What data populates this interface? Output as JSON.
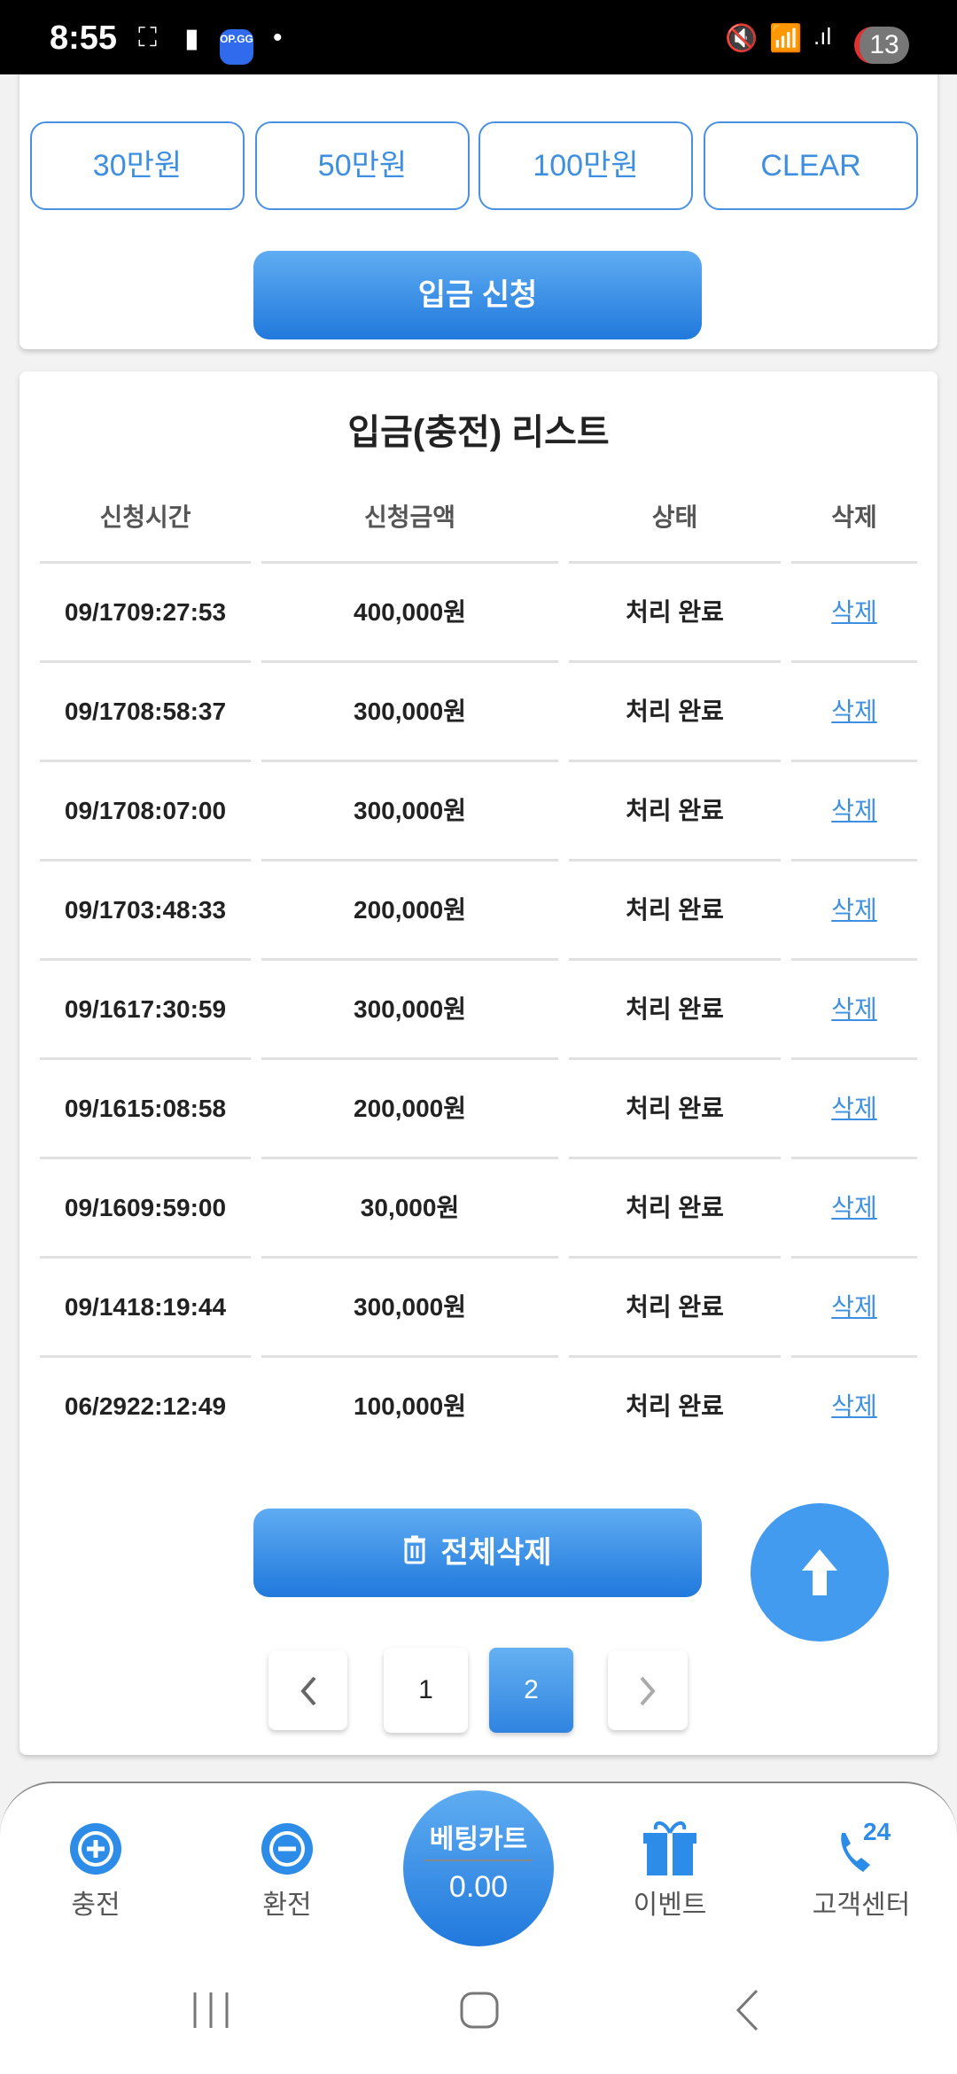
{
  "status_bar": {
    "time": "8:55",
    "notification_count": "13",
    "app_badge": "OP.GG"
  },
  "amount_buttons": [
    "30만원",
    "50만원",
    "100만원",
    "CLEAR"
  ],
  "deposit_request_label": "입금 신청",
  "list": {
    "title": "입금(충전) 리스트",
    "columns": [
      "신청시간",
      "신청금액",
      "상태",
      "삭제"
    ],
    "rows": [
      {
        "date": "09/17",
        "time": "09:27:53",
        "amount": "400,000원",
        "status": "처리 완료",
        "action": "삭제"
      },
      {
        "date": "09/17",
        "time": "08:58:37",
        "amount": "300,000원",
        "status": "처리 완료",
        "action": "삭제"
      },
      {
        "date": "09/17",
        "time": "08:07:00",
        "amount": "300,000원",
        "status": "처리 완료",
        "action": "삭제"
      },
      {
        "date": "09/17",
        "time": "03:48:33",
        "amount": "200,000원",
        "status": "처리 완료",
        "action": "삭제"
      },
      {
        "date": "09/16",
        "time": "17:30:59",
        "amount": "300,000원",
        "status": "처리 완료",
        "action": "삭제"
      },
      {
        "date": "09/16",
        "time": "15:08:58",
        "amount": "200,000원",
        "status": "처리 완료",
        "action": "삭제"
      },
      {
        "date": "09/16",
        "time": "09:59:00",
        "amount": "30,000원",
        "status": "처리 완료",
        "action": "삭제"
      },
      {
        "date": "09/14",
        "time": "18:19:44",
        "amount": "300,000원",
        "status": "처리 완료",
        "action": "삭제"
      },
      {
        "date": "06/29",
        "time": "22:12:49",
        "amount": "100,000원",
        "status": "처리 완료",
        "action": "삭제"
      }
    ],
    "delete_all_label": "전체삭제"
  },
  "pagination": {
    "pages": [
      "1",
      "2"
    ],
    "current": "2"
  },
  "bottom_nav": {
    "items": [
      "충전",
      "환전",
      "이벤트",
      "고객센터"
    ],
    "center_label": "베팅카트",
    "center_value": "0.00",
    "support_badge": "24"
  },
  "colors": {
    "accent": "#3f8fe0",
    "button_gradient_top": "#5eacf2",
    "button_gradient_bottom": "#2179dc"
  }
}
